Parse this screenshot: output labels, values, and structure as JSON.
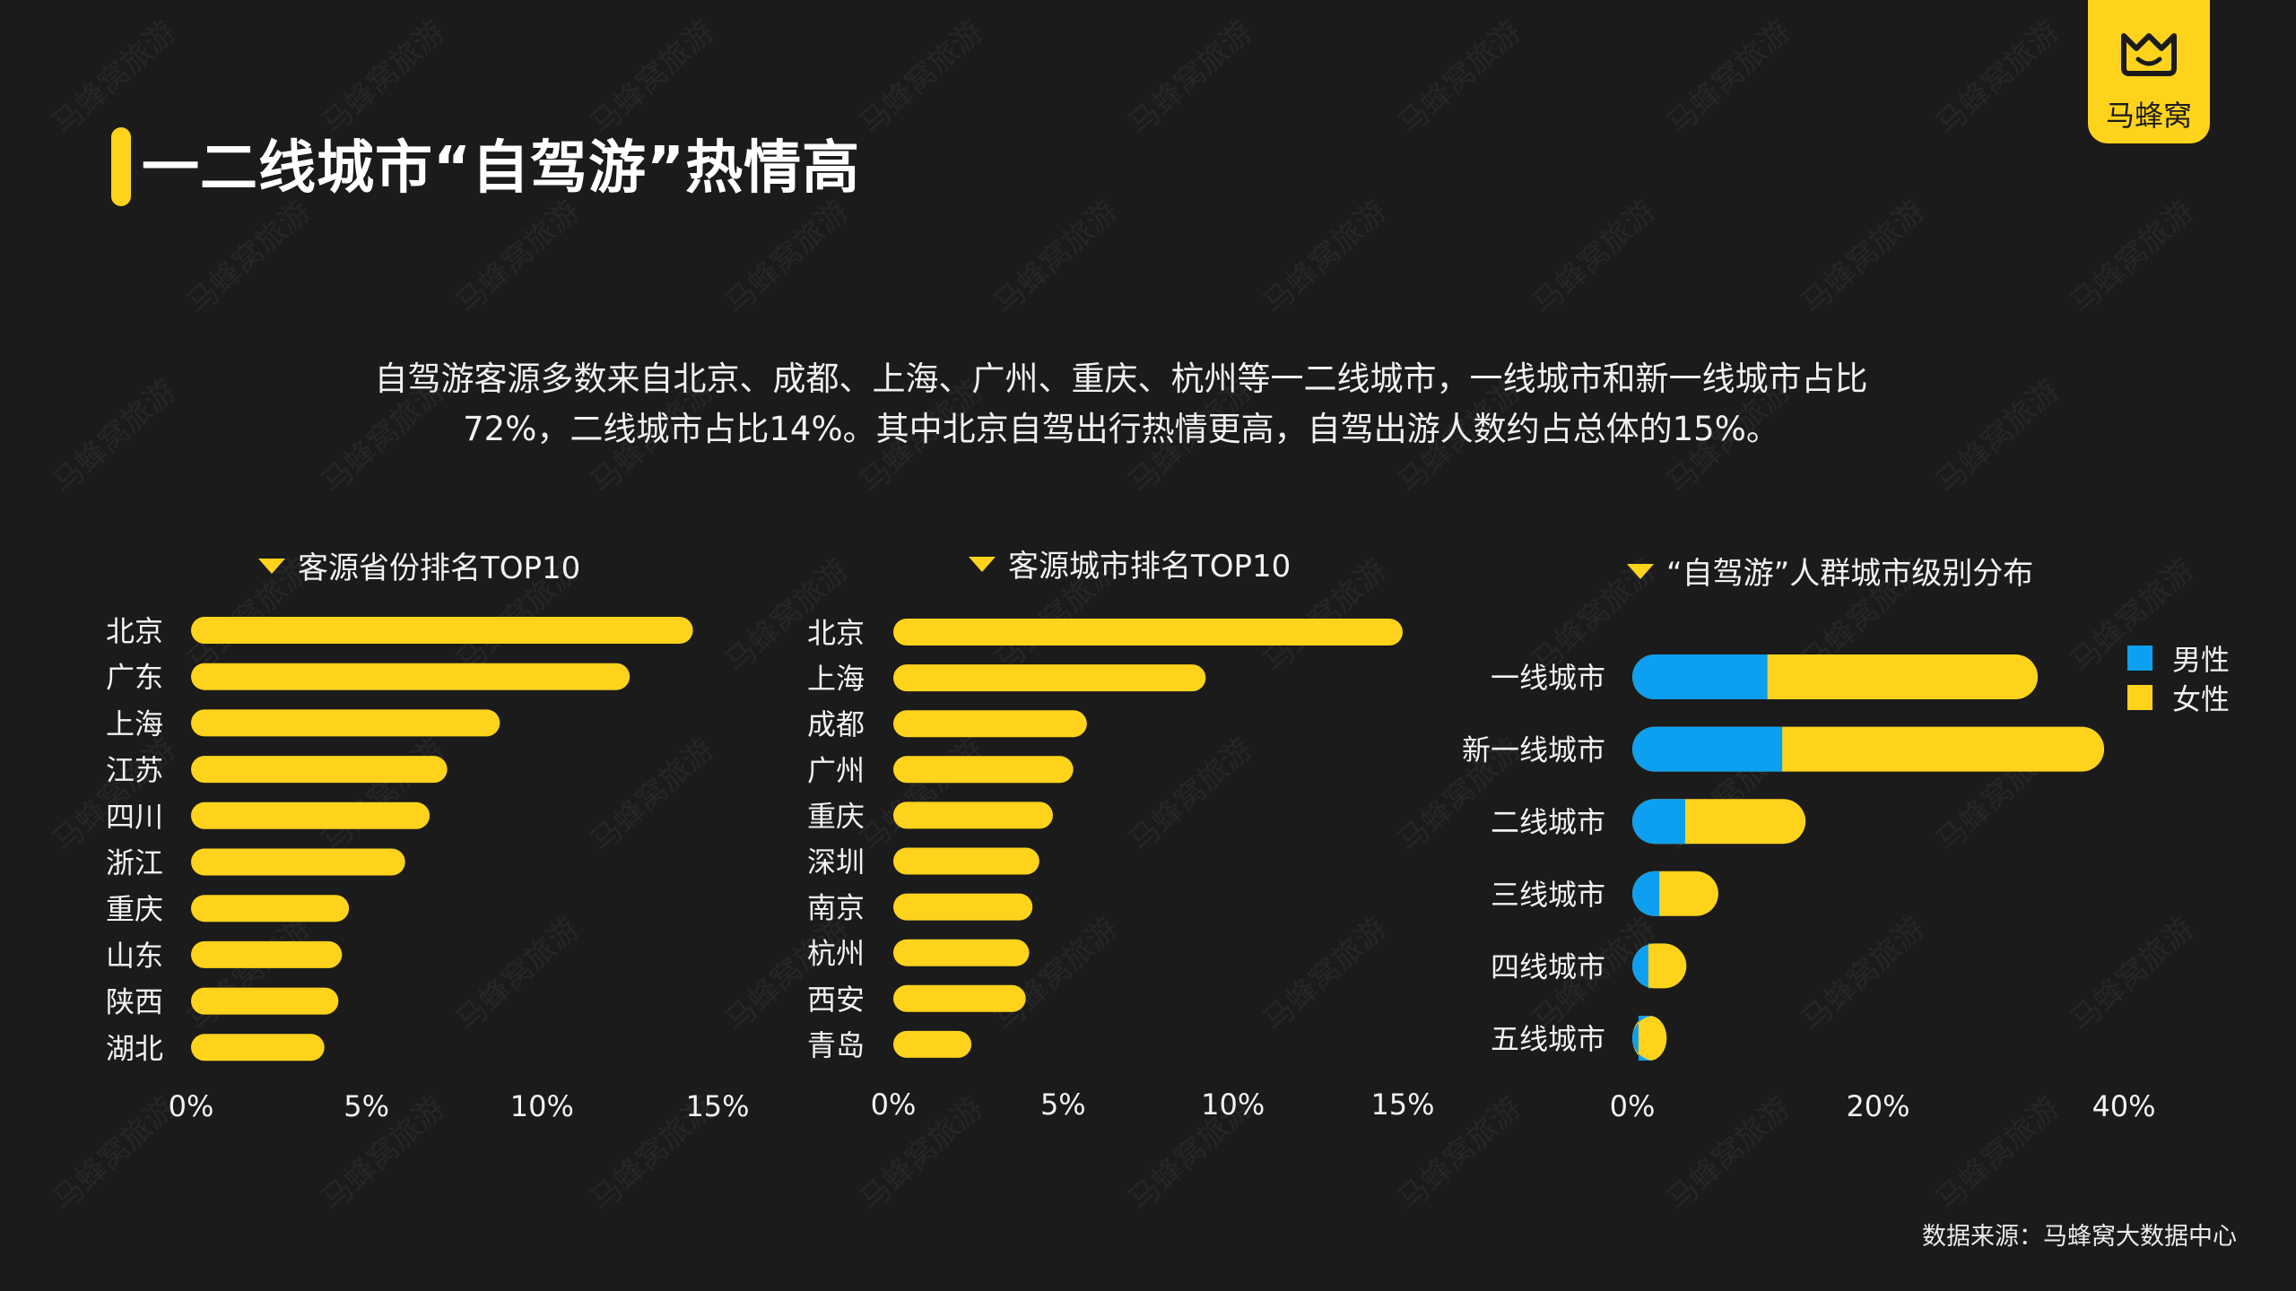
{
  "title": "一二线城市“自驾游”热情高",
  "description_line1": "自驾游客源多数来自北京、成都、上海、广州、重庆、杭州等一二线城市，一线城市和新一线城市占比",
  "description_line2": "72%，二线城市占比14%。其中北京自驾出行热情更高，自驾出游人数约占总体的15%。",
  "logo_text": "马蜂窝",
  "watermark": "马蜂窝旅游",
  "source": "数据来源：马蜂窝大数据中心",
  "colors": {
    "accent": "#ffd31c",
    "male": "#0d9ff0",
    "female": "#ffd31c",
    "background": "#1b1b1b"
  },
  "chart_data": [
    {
      "type": "bar",
      "orientation": "horizontal",
      "title": "客源省份排名TOP10",
      "categories": [
        "北京",
        "广东",
        "上海",
        "江苏",
        "四川",
        "浙江",
        "重庆",
        "山东",
        "陕西",
        "湖北"
      ],
      "values": [
        14.3,
        12.5,
        8.8,
        7.3,
        6.8,
        6.1,
        4.5,
        4.3,
        4.2,
        3.8
      ],
      "xlim": [
        0,
        15
      ],
      "xticks": [
        "0%",
        "5%",
        "10%",
        "15%"
      ]
    },
    {
      "type": "bar",
      "orientation": "horizontal",
      "title": "客源城市排名TOP10",
      "categories": [
        "北京",
        "上海",
        "成都",
        "广州",
        "重庆",
        "深圳",
        "南京",
        "杭州",
        "西安",
        "青岛"
      ],
      "values": [
        15.0,
        9.2,
        5.7,
        5.3,
        4.7,
        4.3,
        4.1,
        4.0,
        3.9,
        2.3
      ],
      "xlim": [
        0,
        15
      ],
      "xticks": [
        "0%",
        "5%",
        "10%",
        "15%"
      ]
    },
    {
      "type": "bar",
      "orientation": "horizontal",
      "stacked": true,
      "title": "“自驾游”人群城市级别分布",
      "categories": [
        "一线城市",
        "新一线城市",
        "二线城市",
        "三线城市",
        "四线城市",
        "五线城市"
      ],
      "series": [
        {
          "name": "男性",
          "values": [
            11.0,
            12.2,
            4.3,
            2.2,
            1.3,
            0.5
          ]
        },
        {
          "name": "女性",
          "values": [
            22.0,
            26.2,
            9.8,
            4.8,
            3.1,
            2.3
          ]
        }
      ],
      "xlim": [
        0,
        40
      ],
      "xticks": [
        "0%",
        "20%",
        "40%"
      ],
      "legend": "top-right"
    }
  ]
}
